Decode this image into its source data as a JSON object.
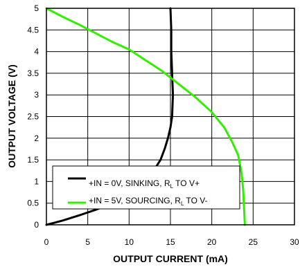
{
  "chart_data": {
    "type": "line",
    "xlabel": "OUTPUT CURRENT (mA)",
    "ylabel": "OUTPUT VOLTAGE (V)",
    "xlim": [
      0,
      30
    ],
    "ylim": [
      0,
      5
    ],
    "x_ticks": [
      "0",
      "5",
      "10",
      "15",
      "20",
      "25",
      "30"
    ],
    "y_ticks": [
      "0",
      "0.5",
      "1",
      "1.5",
      "2",
      "2.5",
      "3",
      "3.5",
      "4",
      "4.5",
      "5"
    ],
    "grid": true,
    "legend_position": "bottom-center",
    "series": [
      {
        "legend_main": "+IN = 0V, SINKING, R",
        "legend_sub": "L",
        "legend_tail": " TO V+",
        "color": "#000000",
        "points": [
          [
            0,
            0
          ],
          [
            1,
            0.05
          ],
          [
            2,
            0.1
          ],
          [
            4,
            0.22
          ],
          [
            6,
            0.35
          ],
          [
            8,
            0.5
          ],
          [
            10,
            0.7
          ],
          [
            11.5,
            0.9
          ],
          [
            12.5,
            1.1
          ],
          [
            13.3,
            1.35
          ],
          [
            13.8,
            1.5
          ],
          [
            14.3,
            1.75
          ],
          [
            14.7,
            2.0
          ],
          [
            15.0,
            2.25
          ],
          [
            15.2,
            2.5
          ],
          [
            15.3,
            3.0
          ],
          [
            15.2,
            3.5
          ],
          [
            15.1,
            4.0
          ],
          [
            15.1,
            4.5
          ],
          [
            15.0,
            5.0
          ]
        ]
      },
      {
        "legend_main": "+IN = 5V, SOURCING, R",
        "legend_sub": "L",
        "legend_tail": " TO V-",
        "color": "#33ee00",
        "points": [
          [
            0,
            5.0
          ],
          [
            2,
            4.8
          ],
          [
            4,
            4.62
          ],
          [
            6,
            4.42
          ],
          [
            8,
            4.22
          ],
          [
            10,
            4.05
          ],
          [
            12,
            3.8
          ],
          [
            14,
            3.55
          ],
          [
            16,
            3.25
          ],
          [
            18,
            2.95
          ],
          [
            20,
            2.6
          ],
          [
            21.5,
            2.25
          ],
          [
            22.5,
            1.9
          ],
          [
            23.2,
            1.6
          ],
          [
            23.6,
            1.2
          ],
          [
            23.8,
            0.8
          ],
          [
            23.9,
            0.4
          ],
          [
            24.0,
            0.0
          ]
        ]
      }
    ]
  }
}
